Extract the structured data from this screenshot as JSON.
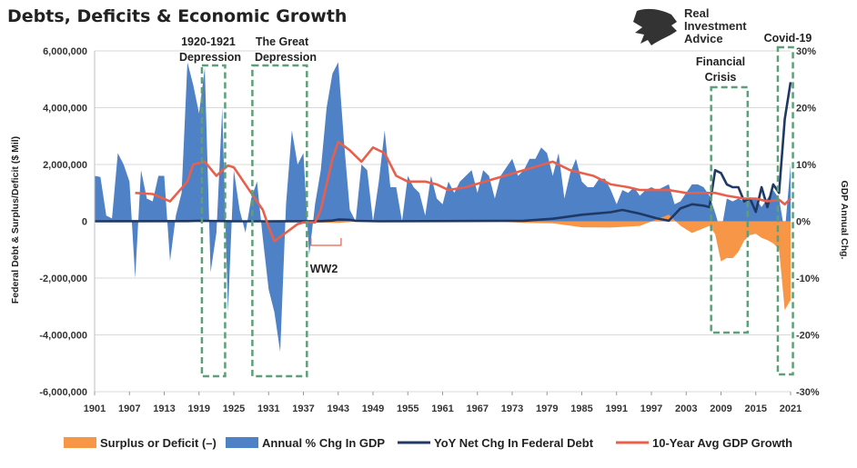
{
  "title": "Debts, Deficits & Economic Growth",
  "logo": {
    "line1": "Real",
    "line2": "Investment",
    "line3": "Advice",
    "icon": "eagle-head-icon"
  },
  "colors": {
    "area_gdp": "#4f81c7",
    "area_deficit": "#f79646",
    "debt_line": "#1f3864",
    "avg_line": "#e8604c",
    "box": "#5f9e7a",
    "ww2": "#e8604c",
    "grid": "#d9d9d9"
  },
  "annotations": {
    "depression_1920": [
      "1920-1921",
      "Depression"
    ],
    "great_depression": [
      "The Great",
      "Depression"
    ],
    "ww2": "WW2",
    "financial_crisis": [
      "Financial",
      "Crisis"
    ],
    "covid": "Covid-19"
  },
  "legend": [
    {
      "label": "Surplus or Deficit (–)",
      "type": "area",
      "color": "#f79646"
    },
    {
      "label": "Annual % Chg In GDP",
      "type": "area",
      "color": "#4f81c7"
    },
    {
      "label": "YoY Net Chg In Federal Debt",
      "type": "line",
      "color": "#1f3864"
    },
    {
      "label": "10-Year Avg GDP Growth",
      "type": "line",
      "color": "#e8604c"
    }
  ],
  "chart_data": {
    "type": "area",
    "title": "Debts, Deficits & Economic Growth",
    "xlabel": "",
    "ylabel": "Federal Debt & Surplus/Deficit ($ Mil)",
    "y2label": "GDP Annual Chg.",
    "x_ticks": [
      1901,
      1907,
      1913,
      1919,
      1925,
      1931,
      1937,
      1943,
      1949,
      1955,
      1961,
      1967,
      1973,
      1979,
      1985,
      1991,
      1997,
      2003,
      2009,
      2015,
      2021
    ],
    "y_ticks": [
      "6,000,000",
      "4,000,000",
      "2,000,000",
      "0",
      "-2,000,000",
      "-4,000,000",
      "-6,000,000"
    ],
    "y2_ticks": [
      "30%",
      "20%",
      "10%",
      "0%",
      "-10%",
      "-20%",
      "-30%"
    ],
    "ylim": [
      -6000000,
      6000000
    ],
    "y2lim": [
      -30,
      30
    ],
    "xlim": [
      1901,
      2021
    ],
    "grid": true,
    "legend_position": "bottom",
    "series": [
      {
        "name": "Annual % Chg In GDP",
        "axis": "right",
        "unit": "%",
        "points": [
          [
            1901,
            8
          ],
          [
            1902,
            7.8
          ],
          [
            1903,
            1
          ],
          [
            1904,
            0.5
          ],
          [
            1905,
            12
          ],
          [
            1906,
            10
          ],
          [
            1907,
            7
          ],
          [
            1908,
            -10
          ],
          [
            1909,
            9
          ],
          [
            1910,
            4
          ],
          [
            1911,
            3.5
          ],
          [
            1912,
            8
          ],
          [
            1913,
            8
          ],
          [
            1914,
            -7
          ],
          [
            1915,
            1
          ],
          [
            1916,
            5
          ],
          [
            1917,
            28
          ],
          [
            1918,
            24
          ],
          [
            1919,
            19
          ],
          [
            1920,
            27
          ],
          [
            1921,
            -9
          ],
          [
            1922,
            -2
          ],
          [
            1923,
            20
          ],
          [
            1924,
            -16
          ],
          [
            1925,
            9
          ],
          [
            1926,
            2
          ],
          [
            1927,
            -2
          ],
          [
            1928,
            4
          ],
          [
            1929,
            7
          ],
          [
            1930,
            -3
          ],
          [
            1931,
            -12
          ],
          [
            1932,
            -16
          ],
          [
            1933,
            -23
          ],
          [
            1934,
            3
          ],
          [
            1935,
            16
          ],
          [
            1936,
            10
          ],
          [
            1937,
            12
          ],
          [
            1938,
            -6
          ],
          [
            1939,
            3
          ],
          [
            1940,
            9
          ],
          [
            1941,
            20
          ],
          [
            1942,
            26
          ],
          [
            1943,
            28
          ],
          [
            1944,
            14
          ],
          [
            1945,
            2
          ],
          [
            1946,
            0
          ],
          [
            1947,
            10
          ],
          [
            1948,
            9
          ],
          [
            1949,
            0
          ],
          [
            1950,
            7
          ],
          [
            1951,
            16
          ],
          [
            1952,
            6
          ],
          [
            1953,
            6
          ],
          [
            1954,
            0
          ],
          [
            1955,
            8
          ],
          [
            1956,
            6
          ],
          [
            1957,
            5
          ],
          [
            1958,
            1
          ],
          [
            1959,
            8
          ],
          [
            1960,
            4
          ],
          [
            1961,
            3
          ],
          [
            1962,
            7
          ],
          [
            1963,
            5
          ],
          [
            1964,
            7
          ],
          [
            1965,
            8
          ],
          [
            1966,
            9
          ],
          [
            1967,
            5
          ],
          [
            1968,
            9
          ],
          [
            1969,
            8
          ],
          [
            1970,
            4
          ],
          [
            1971,
            8
          ],
          [
            1972,
            9.5
          ],
          [
            1973,
            11
          ],
          [
            1974,
            8
          ],
          [
            1975,
            9
          ],
          [
            1976,
            11
          ],
          [
            1977,
            11
          ],
          [
            1978,
            13
          ],
          [
            1979,
            12
          ],
          [
            1980,
            8
          ],
          [
            1981,
            12
          ],
          [
            1982,
            4
          ],
          [
            1983,
            8.5
          ],
          [
            1984,
            11
          ],
          [
            1985,
            7
          ],
          [
            1986,
            6
          ],
          [
            1987,
            6
          ],
          [
            1988,
            7.5
          ],
          [
            1989,
            7.5
          ],
          [
            1990,
            5.5
          ],
          [
            1991,
            3
          ],
          [
            1992,
            5.5
          ],
          [
            1993,
            5
          ],
          [
            1994,
            6
          ],
          [
            1995,
            4.5
          ],
          [
            1996,
            5.5
          ],
          [
            1997,
            6
          ],
          [
            1998,
            5.5
          ],
          [
            1999,
            6
          ],
          [
            2000,
            6.5
          ],
          [
            2001,
            3
          ],
          [
            2002,
            3.5
          ],
          [
            2003,
            5
          ],
          [
            2004,
            6.5
          ],
          [
            2005,
            6.5
          ],
          [
            2006,
            6
          ],
          [
            2007,
            4.5
          ],
          [
            2008,
            1.5
          ],
          [
            2009,
            -2
          ],
          [
            2010,
            4
          ],
          [
            2011,
            3.5
          ],
          [
            2012,
            4
          ],
          [
            2013,
            3.5
          ],
          [
            2014,
            4
          ],
          [
            2015,
            4
          ],
          [
            2016,
            2.5
          ],
          [
            2017,
            4
          ],
          [
            2018,
            5.5
          ],
          [
            2019,
            4
          ],
          [
            2020,
            -2
          ],
          [
            2021,
            10
          ]
        ]
      },
      {
        "name": "Surplus or Deficit (–)",
        "axis": "left",
        "unit": "$ Mil",
        "points": [
          [
            1901,
            0
          ],
          [
            1925,
            0
          ],
          [
            1931,
            -20000
          ],
          [
            1943,
            -55000
          ],
          [
            1946,
            -16000
          ],
          [
            1950,
            -3000
          ],
          [
            1960,
            0
          ],
          [
            1970,
            -3000
          ],
          [
            1975,
            -53000
          ],
          [
            1980,
            -74000
          ],
          [
            1985,
            -212000
          ],
          [
            1990,
            -221000
          ],
          [
            1995,
            -164000
          ],
          [
            1998,
            69000
          ],
          [
            2000,
            236000
          ],
          [
            2002,
            -158000
          ],
          [
            2004,
            -413000
          ],
          [
            2007,
            -161000
          ],
          [
            2008,
            -459000
          ],
          [
            2009,
            -1413000
          ],
          [
            2010,
            -1294000
          ],
          [
            2011,
            -1300000
          ],
          [
            2012,
            -1077000
          ],
          [
            2013,
            -680000
          ],
          [
            2014,
            -485000
          ],
          [
            2015,
            -442000
          ],
          [
            2016,
            -585000
          ],
          [
            2017,
            -665000
          ],
          [
            2018,
            -779000
          ],
          [
            2019,
            -984000
          ],
          [
            2020,
            -3132000
          ],
          [
            2021,
            -2772000
          ]
        ]
      },
      {
        "name": "YoY Net Chg In Federal Debt",
        "axis": "left",
        "unit": "$ Mil",
        "points": [
          [
            1901,
            0
          ],
          [
            1917,
            8000
          ],
          [
            1919,
            15000
          ],
          [
            1925,
            0
          ],
          [
            1931,
            0
          ],
          [
            1935,
            2000
          ],
          [
            1940,
            5000
          ],
          [
            1942,
            25000
          ],
          [
            1943,
            60000
          ],
          [
            1945,
            50000
          ],
          [
            1946,
            15000
          ],
          [
            1950,
            0
          ],
          [
            1975,
            20000
          ],
          [
            1980,
            90000
          ],
          [
            1985,
            230000
          ],
          [
            1990,
            320000
          ],
          [
            1992,
            400000
          ],
          [
            1995,
            270000
          ],
          [
            1998,
            100000
          ],
          [
            2000,
            20000
          ],
          [
            2002,
            450000
          ],
          [
            2004,
            600000
          ],
          [
            2006,
            550000
          ],
          [
            2007,
            500000
          ],
          [
            2008,
            1800000
          ],
          [
            2009,
            1700000
          ],
          [
            2010,
            1300000
          ],
          [
            2011,
            1200000
          ],
          [
            2012,
            1200000
          ],
          [
            2013,
            700000
          ],
          [
            2014,
            800000
          ],
          [
            2015,
            330000
          ],
          [
            2016,
            1200000
          ],
          [
            2017,
            500000
          ],
          [
            2018,
            1300000
          ],
          [
            2019,
            1000000
          ],
          [
            2020,
            3600000
          ],
          [
            2021,
            4900000
          ]
        ]
      },
      {
        "name": "10-Year Avg GDP Growth",
        "axis": "right",
        "unit": "%",
        "points": [
          [
            1908,
            5
          ],
          [
            1911,
            4.8
          ],
          [
            1914,
            3.5
          ],
          [
            1917,
            7
          ],
          [
            1918,
            10
          ],
          [
            1920,
            10.5
          ],
          [
            1922,
            8
          ],
          [
            1923,
            9
          ],
          [
            1924,
            9.8
          ],
          [
            1925,
            9.5
          ],
          [
            1928,
            5
          ],
          [
            1930,
            2
          ],
          [
            1931,
            -1
          ],
          [
            1932,
            -3.5
          ],
          [
            1934,
            -2
          ],
          [
            1936,
            -0.5
          ],
          [
            1937,
            -0.2
          ],
          [
            1939,
            -0.2
          ],
          [
            1940,
            2
          ],
          [
            1942,
            11
          ],
          [
            1943,
            14
          ],
          [
            1945,
            12.5
          ],
          [
            1947,
            10.5
          ],
          [
            1949,
            13
          ],
          [
            1951,
            12
          ],
          [
            1953,
            8
          ],
          [
            1955,
            7
          ],
          [
            1958,
            7
          ],
          [
            1960,
            6.5
          ],
          [
            1962,
            5.5
          ],
          [
            1965,
            6
          ],
          [
            1970,
            7.5
          ],
          [
            1975,
            9
          ],
          [
            1980,
            10.5
          ],
          [
            1983,
            9
          ],
          [
            1987,
            8
          ],
          [
            1990,
            6.5
          ],
          [
            1993,
            6
          ],
          [
            1995,
            5.5
          ],
          [
            2000,
            5.5
          ],
          [
            2003,
            5
          ],
          [
            2008,
            5
          ],
          [
            2010,
            4.5
          ],
          [
            2013,
            4
          ],
          [
            2015,
            4
          ],
          [
            2017,
            3.5
          ],
          [
            2019,
            3.8
          ],
          [
            2020,
            3
          ],
          [
            2021,
            4
          ]
        ]
      }
    ]
  }
}
